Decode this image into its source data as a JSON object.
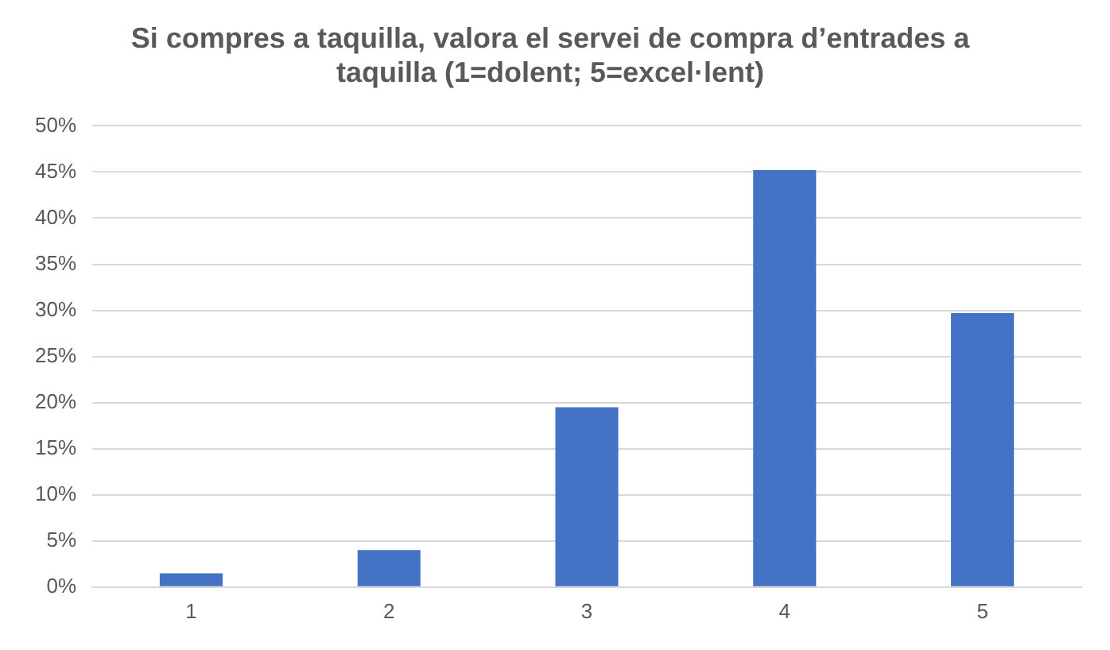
{
  "chart_data": {
    "type": "bar",
    "title": "Si compres a taquilla, valora el servei de compra d’entrades a taquilla (1=dolent; 5=excel·lent)",
    "categories": [
      "1",
      "2",
      "3",
      "4",
      "5"
    ],
    "values": [
      1.5,
      4.0,
      19.5,
      45.2,
      29.7
    ],
    "color": "#4472c4",
    "ylim": [
      0,
      50
    ],
    "yticks": [
      {
        "value": 0,
        "label": "0%"
      },
      {
        "value": 5,
        "label": "5%"
      },
      {
        "value": 10,
        "label": "10%"
      },
      {
        "value": 15,
        "label": "15%"
      },
      {
        "value": 20,
        "label": "20%"
      },
      {
        "value": 25,
        "label": "25%"
      },
      {
        "value": 30,
        "label": "30%"
      },
      {
        "value": 35,
        "label": "35%"
      },
      {
        "value": 40,
        "label": "40%"
      },
      {
        "value": 45,
        "label": "45%"
      },
      {
        "value": 50,
        "label": "50%"
      }
    ],
    "grid": "y",
    "legend": false
  }
}
